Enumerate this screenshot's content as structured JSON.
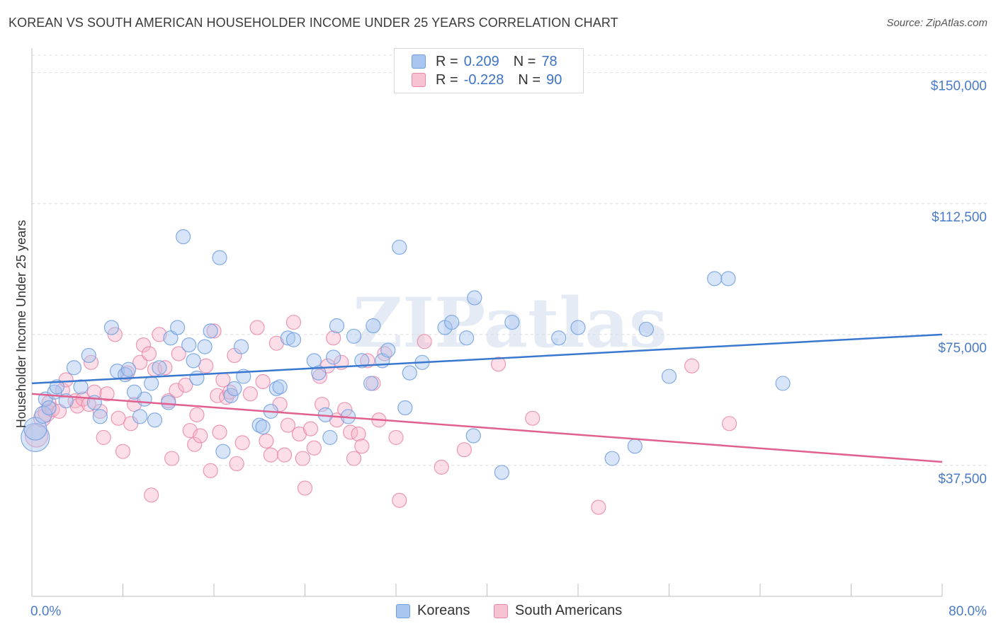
{
  "title": "KOREAN VS SOUTH AMERICAN HOUSEHOLDER INCOME UNDER 25 YEARS CORRELATION CHART",
  "source": "Source: ZipAtlas.com",
  "watermark": "ZIPatlas",
  "colors": {
    "koreans_fill": "#a9c6f0",
    "koreans_stroke": "#6f9ee0",
    "koreans_line": "#3a78d0",
    "south_fill": "#f7b6ca",
    "south_stroke": "#ea87a8",
    "south_line": "#e0608f",
    "tick_text": "#4a7bc8",
    "grid": "#dcdcdc"
  },
  "legend": {
    "rows": [
      {
        "r_label": "R =",
        "r_value": "0.209",
        "n_label": "N =",
        "n_value": "78"
      },
      {
        "r_label": "R =",
        "r_value": "-0.228",
        "n_label": "N =",
        "n_value": "90"
      }
    ]
  },
  "bottom_legend": [
    "Koreans",
    "South Americans"
  ],
  "chart_data": {
    "type": "scatter",
    "title": "KOREAN VS SOUTH AMERICAN HOUSEHOLDER INCOME UNDER 25 YEARS CORRELATION CHART",
    "xlabel": "",
    "ylabel": "Householder Income Under 25 years",
    "xlim": [
      0,
      80
    ],
    "ylim": [
      0,
      155000
    ],
    "x_tick_labels": [
      "0.0%",
      "80.0%"
    ],
    "y_ticks": [
      37500,
      75000,
      112500,
      150000
    ],
    "y_tick_labels": [
      "$37,500",
      "$75,000",
      "$112,500",
      "$150,000"
    ],
    "grid": true,
    "legend_position": "top-center",
    "series": [
      {
        "name": "Koreans",
        "trend": {
          "x": [
            0,
            80
          ],
          "y": [
            61000,
            75000
          ]
        },
        "points": [
          [
            0.3,
            45500,
            20
          ],
          [
            0.3,
            48000,
            16
          ],
          [
            1.0,
            52000,
            12
          ],
          [
            1.2,
            56500,
            10
          ],
          [
            1.5,
            54000,
            10
          ],
          [
            2.0,
            58500,
            10
          ],
          [
            2.2,
            60000,
            10
          ],
          [
            3.0,
            56000,
            10
          ],
          [
            3.7,
            65500,
            10
          ],
          [
            4.3,
            60000,
            10
          ],
          [
            5.0,
            69000,
            10
          ],
          [
            5.5,
            55500,
            10
          ],
          [
            7.0,
            77000,
            10
          ],
          [
            7.5,
            64500,
            10
          ],
          [
            8.2,
            63500,
            10
          ],
          [
            8.5,
            65000,
            10
          ],
          [
            9.5,
            51500,
            10
          ],
          [
            9.9,
            56500,
            10
          ],
          [
            10.5,
            61000,
            10
          ],
          [
            10.8,
            50500,
            10
          ],
          [
            11.2,
            65500,
            10
          ],
          [
            12.0,
            55500,
            10
          ],
          [
            12.2,
            74000,
            10
          ],
          [
            12.8,
            77000,
            10
          ],
          [
            13.3,
            103000,
            10
          ],
          [
            13.8,
            72000,
            10
          ],
          [
            14.2,
            67500,
            10
          ],
          [
            14.5,
            62500,
            10
          ],
          [
            15.2,
            71500,
            10
          ],
          [
            15.7,
            76000,
            10
          ],
          [
            16.5,
            97000,
            10
          ],
          [
            16.8,
            41500,
            10
          ],
          [
            17.5,
            57500,
            10
          ],
          [
            17.8,
            59500,
            10
          ],
          [
            18.4,
            71500,
            10
          ],
          [
            18.6,
            63000,
            10
          ],
          [
            20.0,
            49000,
            10
          ],
          [
            20.3,
            48500,
            10
          ],
          [
            21.0,
            53000,
            10
          ],
          [
            21.5,
            59500,
            10
          ],
          [
            21.8,
            60000,
            10
          ],
          [
            22.5,
            74000,
            10
          ],
          [
            23.0,
            73500,
            10
          ],
          [
            24.8,
            67500,
            10
          ],
          [
            25.2,
            64000,
            10
          ],
          [
            25.8,
            52000,
            10
          ],
          [
            26.2,
            45500,
            10
          ],
          [
            26.5,
            68500,
            10
          ],
          [
            26.8,
            77500,
            10
          ],
          [
            27.8,
            51500,
            10
          ],
          [
            28.3,
            74500,
            10
          ],
          [
            29.0,
            67500,
            10
          ],
          [
            29.8,
            61000,
            10
          ],
          [
            30.0,
            77500,
            10
          ],
          [
            30.8,
            67500,
            10
          ],
          [
            31.3,
            70500,
            10
          ],
          [
            32.3,
            100000,
            10
          ],
          [
            32.8,
            54000,
            10
          ],
          [
            33.2,
            64000,
            10
          ],
          [
            34.3,
            67000,
            10
          ],
          [
            36.3,
            77000,
            10
          ],
          [
            36.9,
            78500,
            10
          ],
          [
            38.2,
            74000,
            10
          ],
          [
            38.8,
            46000,
            10
          ],
          [
            38.9,
            85500,
            10
          ],
          [
            41.3,
            35500,
            10
          ],
          [
            42.2,
            78500,
            10
          ],
          [
            46.3,
            74000,
            10
          ],
          [
            48.0,
            77000,
            10
          ],
          [
            51.0,
            39500,
            10
          ],
          [
            53.0,
            43000,
            10
          ],
          [
            54.0,
            76500,
            10
          ],
          [
            56.0,
            63000,
            10
          ],
          [
            60.0,
            91000,
            10
          ],
          [
            61.2,
            91000,
            10
          ],
          [
            66.0,
            61000,
            10
          ],
          [
            6.0,
            51500,
            10
          ],
          [
            9.0,
            58500,
            10
          ]
        ]
      },
      {
        "name": "South Americans",
        "trend": {
          "x": [
            0,
            80
          ],
          "y": [
            58000,
            38500
          ]
        },
        "points": [
          [
            0.4,
            46000,
            16
          ],
          [
            0.9,
            51000,
            12
          ],
          [
            1.3,
            52500,
            12
          ],
          [
            1.5,
            55500,
            10
          ],
          [
            1.8,
            53500,
            10
          ],
          [
            2.4,
            53000,
            10
          ],
          [
            2.7,
            59000,
            10
          ],
          [
            3.0,
            62000,
            10
          ],
          [
            3.8,
            56000,
            10
          ],
          [
            4.0,
            54500,
            10
          ],
          [
            4.5,
            56500,
            10
          ],
          [
            5.0,
            55000,
            10
          ],
          [
            5.2,
            67000,
            10
          ],
          [
            5.5,
            58500,
            10
          ],
          [
            6.0,
            53000,
            10
          ],
          [
            6.3,
            45500,
            10
          ],
          [
            6.6,
            58000,
            10
          ],
          [
            7.3,
            75000,
            10
          ],
          [
            7.6,
            51000,
            10
          ],
          [
            8.0,
            41500,
            10
          ],
          [
            8.4,
            64000,
            10
          ],
          [
            8.7,
            49500,
            10
          ],
          [
            9.0,
            55000,
            10
          ],
          [
            9.5,
            67000,
            10
          ],
          [
            9.8,
            72000,
            10
          ],
          [
            10.3,
            69500,
            10
          ],
          [
            10.5,
            29000,
            10
          ],
          [
            10.8,
            65000,
            10
          ],
          [
            11.2,
            75000,
            10
          ],
          [
            11.7,
            65500,
            10
          ],
          [
            12.0,
            56000,
            10
          ],
          [
            12.3,
            39500,
            10
          ],
          [
            12.7,
            59000,
            10
          ],
          [
            12.9,
            69500,
            10
          ],
          [
            13.5,
            60500,
            10
          ],
          [
            13.9,
            47500,
            10
          ],
          [
            14.3,
            43500,
            10
          ],
          [
            14.5,
            52000,
            10
          ],
          [
            14.8,
            46000,
            10
          ],
          [
            15.3,
            66000,
            10
          ],
          [
            15.7,
            36000,
            10
          ],
          [
            16.0,
            76000,
            10
          ],
          [
            16.3,
            57500,
            10
          ],
          [
            16.5,
            47000,
            10
          ],
          [
            16.8,
            62000,
            10
          ],
          [
            17.1,
            57000,
            10
          ],
          [
            17.4,
            58500,
            10
          ],
          [
            17.8,
            69000,
            10
          ],
          [
            18.0,
            38000,
            10
          ],
          [
            18.5,
            44000,
            10
          ],
          [
            19.2,
            58000,
            10
          ],
          [
            19.8,
            77000,
            10
          ],
          [
            20.3,
            61500,
            10
          ],
          [
            20.6,
            44500,
            10
          ],
          [
            21.0,
            40500,
            10
          ],
          [
            21.5,
            72500,
            10
          ],
          [
            21.8,
            55000,
            10
          ],
          [
            22.2,
            40500,
            10
          ],
          [
            22.5,
            49000,
            10
          ],
          [
            23.0,
            78500,
            10
          ],
          [
            23.5,
            46500,
            10
          ],
          [
            23.8,
            39500,
            10
          ],
          [
            24.0,
            31000,
            10
          ],
          [
            24.5,
            48000,
            10
          ],
          [
            24.8,
            42500,
            10
          ],
          [
            25.3,
            63000,
            10
          ],
          [
            25.5,
            55000,
            10
          ],
          [
            26.0,
            66000,
            10
          ],
          [
            26.5,
            74000,
            10
          ],
          [
            26.8,
            50500,
            10
          ],
          [
            27.2,
            67000,
            10
          ],
          [
            27.5,
            53500,
            10
          ],
          [
            28.0,
            47000,
            10
          ],
          [
            28.3,
            39500,
            10
          ],
          [
            28.7,
            46500,
            10
          ],
          [
            29.0,
            43000,
            10
          ],
          [
            29.5,
            67500,
            10
          ],
          [
            30.0,
            61000,
            10
          ],
          [
            30.5,
            50500,
            10
          ],
          [
            31.0,
            69500,
            10
          ],
          [
            32.0,
            45500,
            10
          ],
          [
            32.3,
            27500,
            10
          ],
          [
            34.5,
            73000,
            10
          ],
          [
            36.0,
            37000,
            10
          ],
          [
            38.0,
            42000,
            10
          ],
          [
            41.0,
            66500,
            10
          ],
          [
            44.0,
            51000,
            10
          ],
          [
            49.8,
            25500,
            10
          ],
          [
            58.0,
            66000,
            10
          ],
          [
            61.3,
            49500,
            10
          ]
        ]
      }
    ]
  }
}
